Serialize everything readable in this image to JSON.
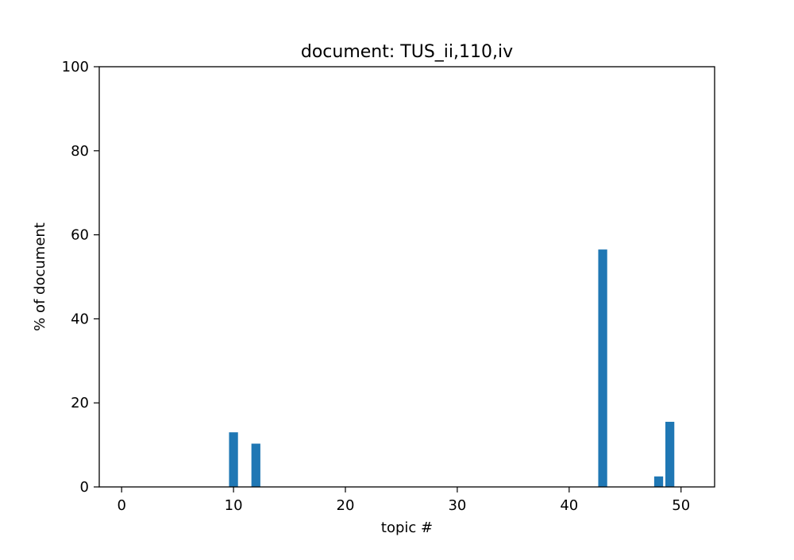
{
  "chart_data": {
    "type": "bar",
    "title": "document: TUS_ii,110,iv",
    "xlabel": "topic #",
    "ylabel": "% of document",
    "xlim": [
      -2,
      53
    ],
    "ylim": [
      0,
      100
    ],
    "xticks": [
      0,
      10,
      20,
      30,
      40,
      50
    ],
    "yticks": [
      0,
      20,
      40,
      60,
      80,
      100
    ],
    "grid": false,
    "bar_color": "#1f77b4",
    "bar_width": 0.8,
    "x": [
      0,
      1,
      2,
      3,
      4,
      5,
      6,
      7,
      8,
      9,
      10,
      11,
      12,
      13,
      14,
      15,
      16,
      17,
      18,
      19,
      20,
      21,
      22,
      23,
      24,
      25,
      26,
      27,
      28,
      29,
      30,
      31,
      32,
      33,
      34,
      35,
      36,
      37,
      38,
      39,
      40,
      41,
      42,
      43,
      44,
      45,
      46,
      47,
      48,
      49,
      50
    ],
    "values": [
      0,
      0,
      0,
      0,
      0,
      0,
      0,
      0,
      0,
      0,
      13,
      0,
      10.3,
      0,
      0,
      0,
      0,
      0,
      0,
      0,
      0,
      0,
      0,
      0,
      0,
      0,
      0,
      0,
      0,
      0,
      0,
      0,
      0,
      0,
      0,
      0,
      0,
      0,
      0,
      0,
      0,
      0,
      0,
      56.5,
      0,
      0,
      0,
      0,
      2.5,
      15.5,
      0
    ]
  }
}
